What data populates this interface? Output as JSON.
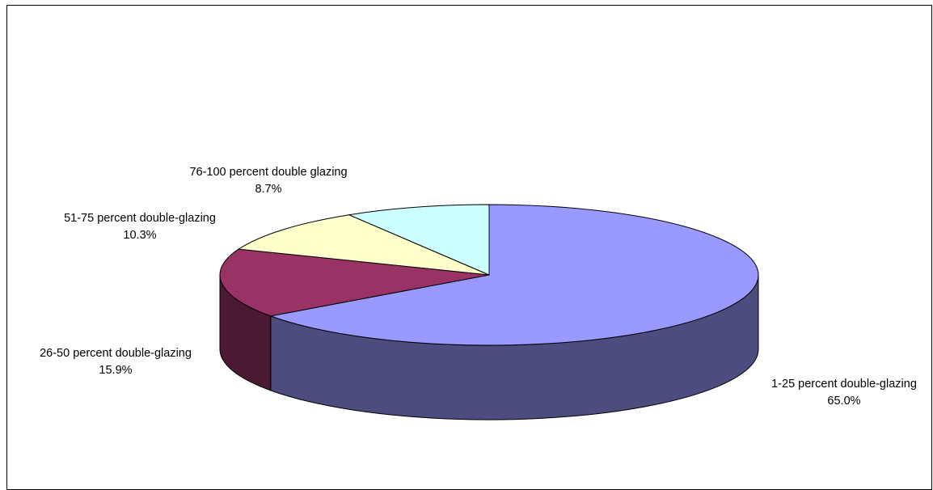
{
  "chart_data": {
    "type": "pie",
    "style": "3d",
    "title": "",
    "legend": "none",
    "slices": [
      {
        "label": "1-25 percent double-glazing",
        "value": 65.0,
        "value_label": "65.0%",
        "top_color": "#9999FF",
        "side_color": "#4C4C7F"
      },
      {
        "label": "26-50 percent double-glazing",
        "value": 15.9,
        "value_label": "15.9%",
        "top_color": "#993366",
        "side_color": "#4C1933"
      },
      {
        "label": "51-75 percent double-glazing",
        "value": 10.3,
        "value_label": "10.3%",
        "top_color": "#FFFFCC",
        "side_color": "#7F7F66"
      },
      {
        "label": "76-100 percent double glazing",
        "value": 8.7,
        "value_label": "8.7%",
        "top_color": "#CCFFFF",
        "side_color": "#667F7F"
      }
    ]
  }
}
